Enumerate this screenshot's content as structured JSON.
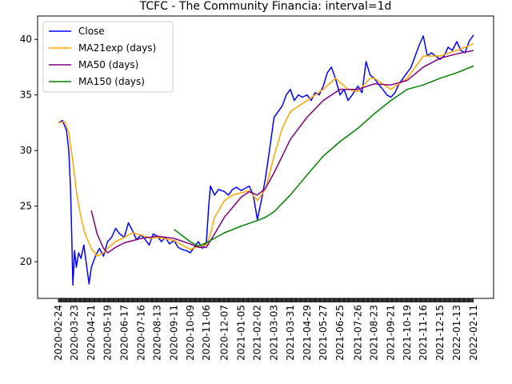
{
  "chart_data": {
    "type": "line",
    "title": "TCFC - The Community Financia: interval=1d",
    "xlabel": "",
    "ylabel": "",
    "x_tick_labels": [
      "2020-02-24",
      "2020-03-23",
      "2020-04-21",
      "2020-05-19",
      "2020-06-17",
      "2020-07-16",
      "2020-08-13",
      "2020-09-11",
      "2020-10-09",
      "2020-11-06",
      "2020-12-07",
      "2021-01-05",
      "2021-02-02",
      "2021-03-03",
      "2021-03-31",
      "2021-04-29",
      "2021-05-27",
      "2021-06-25",
      "2021-07-26",
      "2021-08-23",
      "2021-09-21",
      "2021-10-19",
      "2021-11-16",
      "2021-12-15",
      "2022-01-13",
      "2022-02-11"
    ],
    "y_ticks": [
      20,
      25,
      30,
      35,
      40
    ],
    "ylim": [
      16.7,
      42.1
    ],
    "grid": false,
    "legend_position": "top-left",
    "series": [
      {
        "name": "Close",
        "color": "#0000ff",
        "points": [
          [
            "2020-02-24",
            32.5
          ],
          [
            "2020-03-02",
            32.7
          ],
          [
            "2020-03-09",
            31.8
          ],
          [
            "2020-03-13",
            30.0
          ],
          [
            "2020-03-16",
            26.5
          ],
          [
            "2020-03-18",
            22.5
          ],
          [
            "2020-03-20",
            17.9
          ],
          [
            "2020-03-23",
            21.0
          ],
          [
            "2020-03-26",
            19.5
          ],
          [
            "2020-03-30",
            20.8
          ],
          [
            "2020-04-03",
            20.3
          ],
          [
            "2020-04-08",
            21.5
          ],
          [
            "2020-04-14",
            19.2
          ],
          [
            "2020-04-17",
            18.0
          ],
          [
            "2020-04-21",
            19.5
          ],
          [
            "2020-04-28",
            20.5
          ],
          [
            "2020-05-05",
            21.2
          ],
          [
            "2020-05-12",
            20.5
          ],
          [
            "2020-05-19",
            21.8
          ],
          [
            "2020-05-26",
            22.2
          ],
          [
            "2020-06-02",
            23.0
          ],
          [
            "2020-06-09",
            22.5
          ],
          [
            "2020-06-17",
            22.2
          ],
          [
            "2020-06-24",
            23.5
          ],
          [
            "2020-07-01",
            22.8
          ],
          [
            "2020-07-08",
            22.0
          ],
          [
            "2020-07-16",
            22.4
          ],
          [
            "2020-07-23",
            22.0
          ],
          [
            "2020-07-30",
            21.5
          ],
          [
            "2020-08-06",
            22.5
          ],
          [
            "2020-08-13",
            22.3
          ],
          [
            "2020-08-20",
            21.8
          ],
          [
            "2020-08-27",
            22.2
          ],
          [
            "2020-09-03",
            21.6
          ],
          [
            "2020-09-11",
            21.9
          ],
          [
            "2020-09-18",
            21.3
          ],
          [
            "2020-09-25",
            21.1
          ],
          [
            "2020-10-02",
            21.0
          ],
          [
            "2020-10-09",
            20.8
          ],
          [
            "2020-10-16",
            21.3
          ],
          [
            "2020-10-23",
            21.8
          ],
          [
            "2020-10-30",
            21.2
          ],
          [
            "2020-11-06",
            21.8
          ],
          [
            "2020-11-10",
            25.0
          ],
          [
            "2020-11-13",
            26.8
          ],
          [
            "2020-11-20",
            26.0
          ],
          [
            "2020-11-27",
            26.5
          ],
          [
            "2020-12-07",
            26.3
          ],
          [
            "2020-12-14",
            26.0
          ],
          [
            "2020-12-21",
            26.5
          ],
          [
            "2020-12-28",
            26.7
          ],
          [
            "2021-01-05",
            26.4
          ],
          [
            "2021-01-12",
            26.6
          ],
          [
            "2021-01-19",
            26.8
          ],
          [
            "2021-01-26",
            26.0
          ],
          [
            "2021-02-02",
            23.8
          ],
          [
            "2021-02-09",
            25.5
          ],
          [
            "2021-02-16",
            27.5
          ],
          [
            "2021-02-23",
            30.0
          ],
          [
            "2021-03-03",
            33.0
          ],
          [
            "2021-03-10",
            33.5
          ],
          [
            "2021-03-17",
            34.0
          ],
          [
            "2021-03-24",
            35.0
          ],
          [
            "2021-03-31",
            35.5
          ],
          [
            "2021-04-07",
            34.5
          ],
          [
            "2021-04-14",
            35.0
          ],
          [
            "2021-04-21",
            34.8
          ],
          [
            "2021-04-29",
            35.0
          ],
          [
            "2021-05-06",
            34.5
          ],
          [
            "2021-05-13",
            35.2
          ],
          [
            "2021-05-20",
            35.0
          ],
          [
            "2021-05-27",
            35.8
          ],
          [
            "2021-06-03",
            37.0
          ],
          [
            "2021-06-10",
            37.5
          ],
          [
            "2021-06-17",
            36.5
          ],
          [
            "2021-06-25",
            35.0
          ],
          [
            "2021-07-02",
            35.5
          ],
          [
            "2021-07-09",
            34.5
          ],
          [
            "2021-07-16",
            35.0
          ],
          [
            "2021-07-26",
            35.8
          ],
          [
            "2021-08-02",
            35.2
          ],
          [
            "2021-08-09",
            38.0
          ],
          [
            "2021-08-16",
            36.8
          ],
          [
            "2021-08-23",
            36.5
          ],
          [
            "2021-08-30",
            36.0
          ],
          [
            "2021-09-07",
            35.5
          ],
          [
            "2021-09-14",
            35.0
          ],
          [
            "2021-09-21",
            34.8
          ],
          [
            "2021-09-28",
            35.2
          ],
          [
            "2021-10-05",
            36.0
          ],
          [
            "2021-10-12",
            36.5
          ],
          [
            "2021-10-19",
            37.0
          ],
          [
            "2021-10-26",
            37.5
          ],
          [
            "2021-11-02",
            38.5
          ],
          [
            "2021-11-09",
            39.5
          ],
          [
            "2021-11-16",
            40.3
          ],
          [
            "2021-11-23",
            38.5
          ],
          [
            "2021-11-30",
            38.8
          ],
          [
            "2021-12-07",
            38.5
          ],
          [
            "2021-12-15",
            38.2
          ],
          [
            "2021-12-22",
            38.5
          ],
          [
            "2021-12-29",
            39.3
          ],
          [
            "2022-01-05",
            39.0
          ],
          [
            "2022-01-13",
            39.8
          ],
          [
            "2022-01-20",
            39.0
          ],
          [
            "2022-01-27",
            38.8
          ],
          [
            "2022-02-03",
            39.8
          ],
          [
            "2022-02-11",
            40.4
          ]
        ]
      },
      {
        "name": "MA21exp (days)",
        "color": "#ffa500",
        "points": [
          [
            "2020-02-24",
            32.5
          ],
          [
            "2020-03-06",
            32.6
          ],
          [
            "2020-03-13",
            31.6
          ],
          [
            "2020-03-20",
            29.0
          ],
          [
            "2020-03-27",
            26.0
          ],
          [
            "2020-04-03",
            24.0
          ],
          [
            "2020-04-10",
            22.5
          ],
          [
            "2020-04-21",
            21.2
          ],
          [
            "2020-05-01",
            20.5
          ],
          [
            "2020-05-12",
            20.8
          ],
          [
            "2020-05-19",
            21.2
          ],
          [
            "2020-06-02",
            21.8
          ],
          [
            "2020-06-17",
            22.2
          ],
          [
            "2020-07-01",
            22.6
          ],
          [
            "2020-07-16",
            22.4
          ],
          [
            "2020-08-01",
            22.1
          ],
          [
            "2020-08-13",
            22.2
          ],
          [
            "2020-09-11",
            21.9
          ],
          [
            "2020-10-09",
            21.1
          ],
          [
            "2020-10-23",
            21.4
          ],
          [
            "2020-11-06",
            21.5
          ],
          [
            "2020-11-13",
            22.5
          ],
          [
            "2020-11-20",
            24.0
          ],
          [
            "2020-12-07",
            25.5
          ],
          [
            "2020-12-21",
            26.0
          ],
          [
            "2021-01-05",
            26.2
          ],
          [
            "2021-01-19",
            26.4
          ],
          [
            "2021-02-02",
            25.5
          ],
          [
            "2021-02-16",
            26.5
          ],
          [
            "2021-03-03",
            29.5
          ],
          [
            "2021-03-17",
            32.0
          ],
          [
            "2021-03-31",
            33.5
          ],
          [
            "2021-04-29",
            34.5
          ],
          [
            "2021-05-27",
            35.5
          ],
          [
            "2021-06-17",
            36.5
          ],
          [
            "2021-07-09",
            35.5
          ],
          [
            "2021-07-26",
            35.3
          ],
          [
            "2021-08-16",
            36.5
          ],
          [
            "2021-08-23",
            36.5
          ],
          [
            "2021-09-21",
            35.5
          ],
          [
            "2021-10-19",
            36.5
          ],
          [
            "2021-11-16",
            38.5
          ],
          [
            "2021-12-15",
            38.5
          ],
          [
            "2022-01-13",
            39.0
          ],
          [
            "2022-02-11",
            39.6
          ]
        ]
      },
      {
        "name": "MA50 (days)",
        "color": "#800080",
        "points": [
          [
            "2020-04-21",
            24.6
          ],
          [
            "2020-05-01",
            22.5
          ],
          [
            "2020-05-12",
            21.2
          ],
          [
            "2020-05-19",
            20.8
          ],
          [
            "2020-06-02",
            21.3
          ],
          [
            "2020-06-17",
            21.7
          ],
          [
            "2020-07-16",
            22.1
          ],
          [
            "2020-08-13",
            22.3
          ],
          [
            "2020-09-11",
            22.1
          ],
          [
            "2020-10-09",
            21.6
          ],
          [
            "2020-10-23",
            21.3
          ],
          [
            "2020-11-06",
            21.3
          ],
          [
            "2020-11-20",
            22.5
          ],
          [
            "2020-12-07",
            24.0
          ],
          [
            "2021-01-05",
            25.8
          ],
          [
            "2021-01-19",
            26.3
          ],
          [
            "2021-02-02",
            26.0
          ],
          [
            "2021-02-16",
            26.6
          ],
          [
            "2021-03-03",
            28.0
          ],
          [
            "2021-03-31",
            31.0
          ],
          [
            "2021-04-29",
            33.0
          ],
          [
            "2021-05-27",
            34.5
          ],
          [
            "2021-06-25",
            35.5
          ],
          [
            "2021-07-26",
            35.5
          ],
          [
            "2021-08-23",
            36.0
          ],
          [
            "2021-09-21",
            35.9
          ],
          [
            "2021-10-19",
            36.3
          ],
          [
            "2021-11-16",
            37.5
          ],
          [
            "2021-12-15",
            38.3
          ],
          [
            "2022-01-13",
            38.7
          ],
          [
            "2022-02-11",
            39.0
          ]
        ]
      },
      {
        "name": "MA150 (days)",
        "color": "#008000",
        "points": [
          [
            "2020-09-11",
            22.9
          ],
          [
            "2020-10-09",
            21.8
          ],
          [
            "2020-10-23",
            21.4
          ],
          [
            "2020-11-06",
            21.7
          ],
          [
            "2020-12-07",
            22.6
          ],
          [
            "2021-01-05",
            23.2
          ],
          [
            "2021-02-02",
            23.7
          ],
          [
            "2021-02-16",
            24.0
          ],
          [
            "2021-03-03",
            24.5
          ],
          [
            "2021-03-31",
            26.0
          ],
          [
            "2021-04-29",
            27.8
          ],
          [
            "2021-05-27",
            29.5
          ],
          [
            "2021-06-25",
            30.8
          ],
          [
            "2021-07-26",
            32.0
          ],
          [
            "2021-08-23",
            33.3
          ],
          [
            "2021-09-21",
            34.5
          ],
          [
            "2021-10-19",
            35.5
          ],
          [
            "2021-11-16",
            35.9
          ],
          [
            "2021-12-15",
            36.5
          ],
          [
            "2022-01-13",
            37.0
          ],
          [
            "2022-02-11",
            37.6
          ]
        ]
      }
    ]
  }
}
